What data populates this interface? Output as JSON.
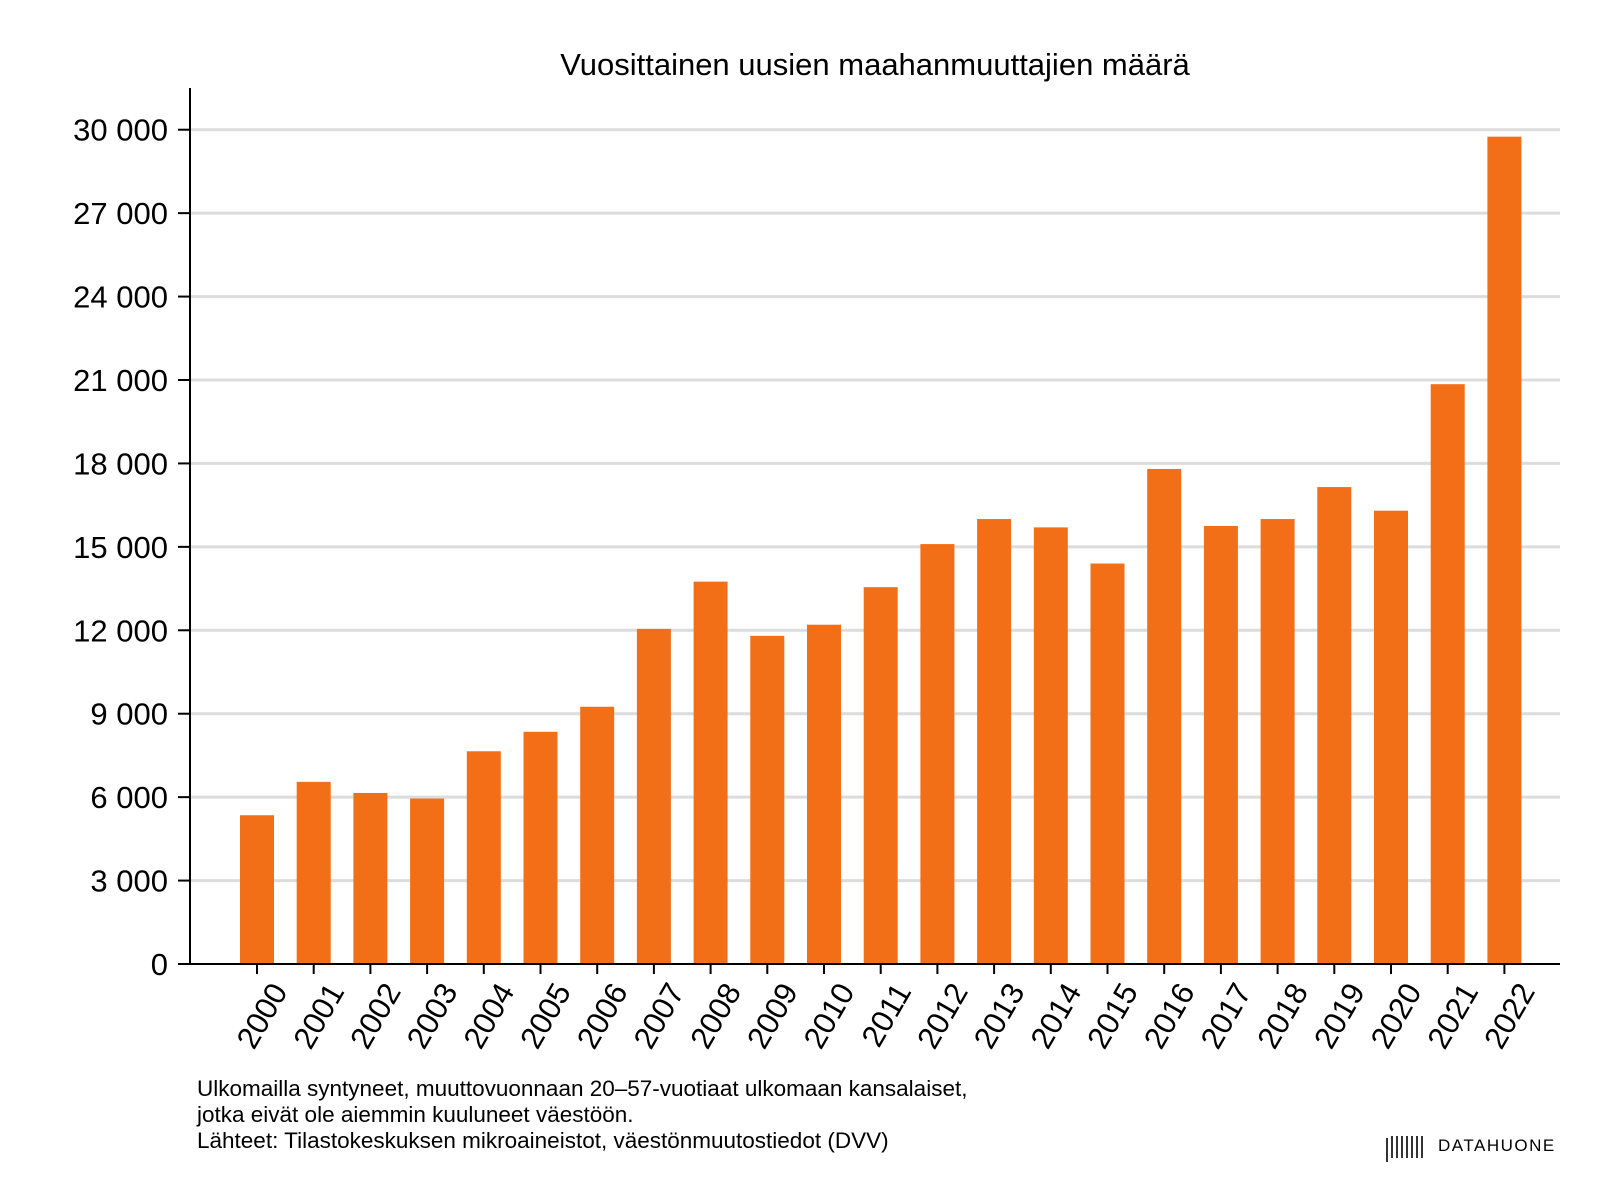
{
  "chart_data": {
    "type": "bar",
    "title": "Vuosittainen uusien maahanmuuttajien määrä",
    "xlabel": "",
    "ylabel": "",
    "ylim": [
      0,
      31500
    ],
    "yticks": [
      0,
      3000,
      6000,
      9000,
      12000,
      15000,
      18000,
      21000,
      24000,
      27000,
      30000
    ],
    "ytick_labels": [
      "0",
      "3 000",
      "6 000",
      "9 000",
      "12 000",
      "15 000",
      "18 000",
      "21 000",
      "24 000",
      "27 000",
      "30 000"
    ],
    "grid": true,
    "bar_color": "#f26f18",
    "categories": [
      "2000",
      "2001",
      "2002",
      "2003",
      "2004",
      "2005",
      "2006",
      "2007",
      "2008",
      "2009",
      "2010",
      "2011",
      "2012",
      "2013",
      "2014",
      "2015",
      "2016",
      "2017",
      "2018",
      "2019",
      "2020",
      "2021",
      "2022"
    ],
    "values": [
      5350,
      6550,
      6150,
      5950,
      7650,
      8350,
      9250,
      12050,
      13750,
      11800,
      12200,
      13550,
      15100,
      16000,
      15700,
      14400,
      17800,
      15750,
      16000,
      17150,
      16300,
      20850,
      29750
    ]
  },
  "footnote": {
    "line1": "Ulkomailla syntyneet, muuttovuonnaan 20–57-vuotiaat ulkomaan kansalaiset,",
    "line2": "jotka eivät ole aiemmin kuuluneet väestöön.",
    "line3": "Lähteet: Tilastokeskuksen mikroaineistot, väestönmuutostiedot (DVV)"
  },
  "brand": {
    "name": "DATAHUONE",
    "icon": "barcode-logo-icon"
  }
}
